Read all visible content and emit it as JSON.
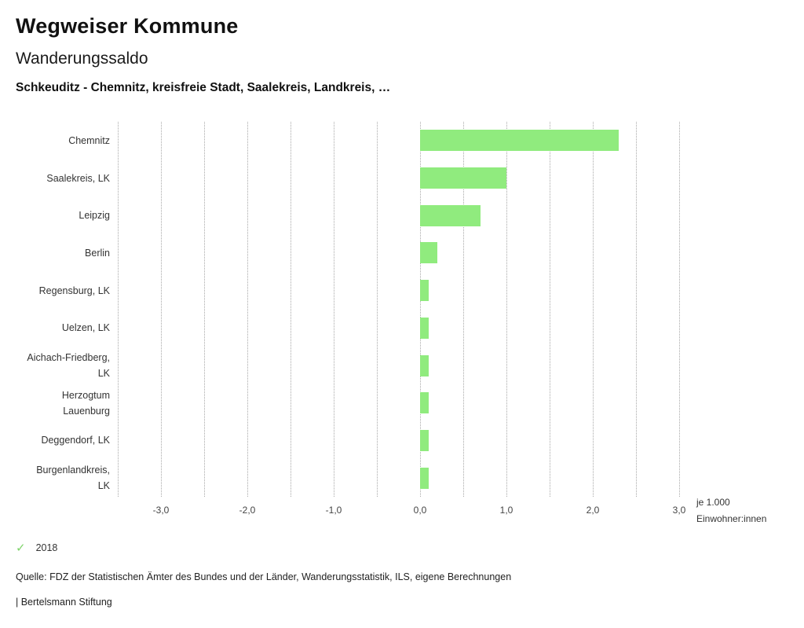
{
  "header": {
    "title": "Wegweiser Kommune",
    "subtitle": "Wanderungssaldo",
    "selection": "Schkeuditz - Chemnitz, kreisfreie Stadt, Saalekreis, Landkreis, …"
  },
  "chart_data": {
    "type": "bar",
    "orientation": "horizontal",
    "title": "Wanderungssaldo",
    "categories": [
      "Chemnitz",
      "Saalekreis, LK",
      "Leipzig",
      "Berlin",
      "Regensburg, LK",
      "Uelzen, LK",
      "Aichach-Friedberg, LK",
      "Herzogtum Lauenburg",
      "Deggendorf, LK",
      "Burgenlandkreis, LK"
    ],
    "series": [
      {
        "name": "2018",
        "values": [
          2.3,
          1.0,
          0.7,
          0.2,
          0.1,
          0.1,
          0.1,
          0.1,
          0.1,
          0.1
        ]
      }
    ],
    "xlim": [
      -3.5,
      3.0
    ],
    "x_ticks": [
      -3.0,
      -2.0,
      -1.0,
      0.0,
      1.0,
      2.0,
      3.0
    ],
    "x_tick_labels": [
      "-3,0",
      "-2,0",
      "-1,0",
      "0,0",
      "1,0",
      "2,0",
      "3,0"
    ],
    "gridline_step": 0.5,
    "grid": "vertical dotted",
    "unit_label_line1": "je 1.000",
    "unit_label_line2": "Einwohner:innen",
    "bar_color": "#90eb7e"
  },
  "legend": {
    "label": "2018",
    "check_icon": "check-mark",
    "check_color": "#7ed36a"
  },
  "footer": {
    "source": "Quelle: FDZ der Statistischen Ämter des Bundes und der Länder, Wanderungsstatistik, ILS, eigene Berechnungen",
    "branding": "| Bertelsmann Stiftung"
  }
}
